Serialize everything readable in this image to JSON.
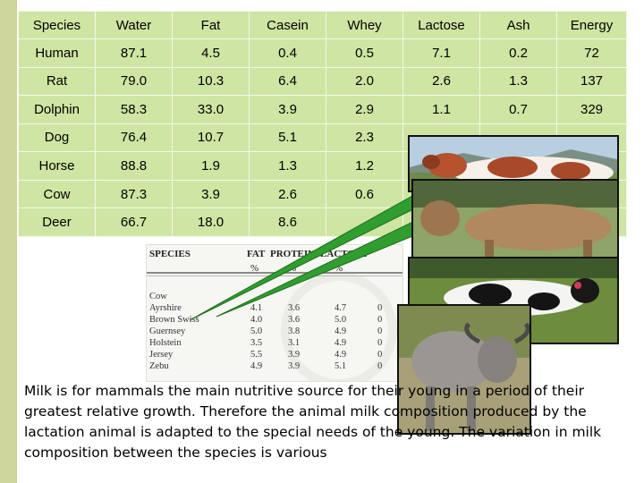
{
  "table": {
    "headers": [
      "Species",
      "Water",
      "Fat",
      "Casein",
      "Whey",
      "Lactose",
      "Ash",
      "Energy"
    ],
    "rows": [
      [
        "Human",
        "87.1",
        "4.5",
        "0.4",
        "0.5",
        "7.1",
        "0.2",
        "72"
      ],
      [
        "Rat",
        "79.0",
        "10.3",
        "6.4",
        "2.0",
        "2.6",
        "1.3",
        "137"
      ],
      [
        "Dolphin",
        "58.3",
        "33.0",
        "3.9",
        "2.9",
        "1.1",
        "0.7",
        "329"
      ],
      [
        "Dog",
        "76.4",
        "10.7",
        "5.1",
        "2.3",
        "",
        "",
        ""
      ],
      [
        "Horse",
        "88.8",
        "1.9",
        "1.3",
        "1.2",
        "",
        "",
        ""
      ],
      [
        "Cow",
        "87.3",
        "3.9",
        "2.6",
        "0.6",
        "",
        "",
        ""
      ],
      [
        "Deer",
        "66.7",
        "18.0",
        "8.6",
        "",
        "",
        "",
        ""
      ]
    ]
  },
  "inset_table": {
    "headers": [
      "SPECIES",
      "FAT",
      "PROTEIN",
      "LACTOSE"
    ],
    "units": [
      "%",
      "%",
      "%"
    ],
    "rows": [
      [
        "Cow",
        "",
        "",
        "",
        ""
      ],
      [
        "Ayrshire",
        "4.1",
        "3.6",
        "4.7",
        "0"
      ],
      [
        "Brown Swiss",
        "4.0",
        "3.6",
        "5.0",
        "0"
      ],
      [
        "Guernsey",
        "5.0",
        "3.8",
        "4.9",
        "0"
      ],
      [
        "Holstein",
        "3.5",
        "3.1",
        "4.9",
        "0"
      ],
      [
        "Jersey",
        "5.5",
        "3.9",
        "4.9",
        "0"
      ],
      [
        "Zebu",
        "4.9",
        "3.9",
        "5.1",
        "0"
      ]
    ]
  },
  "caption": "Milk is for mammals the main nutritive source for their young in a period of their greatest relative growth. Therefore the animal milk composition produced by the lactation animal is adapted to the special needs of the young. The variation in milk composition between the species is various",
  "colors": {
    "table_bg": "#cfe5a3",
    "left_bar": "#cdd59a",
    "pointer": "#2f9e2f"
  }
}
